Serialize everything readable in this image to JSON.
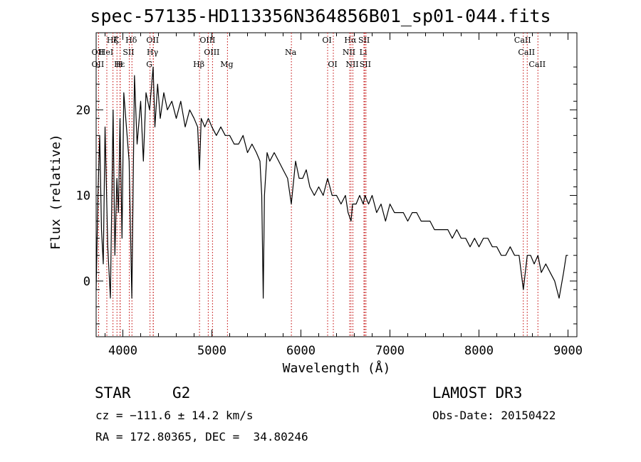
{
  "chart_data": {
    "type": "line",
    "title": "spec-57135-HD113356N364856B01_sp01-044.fits",
    "xlabel": "Wavelength (Å)",
    "ylabel": "Flux (relative)",
    "xlim": [
      3700,
      9100
    ],
    "ylim": [
      -6.5,
      29
    ],
    "xticks": [
      4000,
      5000,
      6000,
      7000,
      8000,
      9000
    ],
    "yticks": [
      0,
      10,
      20
    ],
    "series": [
      {
        "name": "flux",
        "x": [
          3700,
          3720,
          3740,
          3760,
          3780,
          3800,
          3830,
          3860,
          3890,
          3910,
          3933,
          3950,
          3968,
          3990,
          4010,
          4040,
          4070,
          4101,
          4130,
          4160,
          4200,
          4230,
          4260,
          4300,
          4340,
          4360,
          4390,
          4420,
          4460,
          4500,
          4550,
          4600,
          4650,
          4700,
          4750,
          4800,
          4840,
          4861,
          4880,
          4920,
          4960,
          5000,
          5050,
          5100,
          5150,
          5200,
          5250,
          5300,
          5350,
          5400,
          5450,
          5500,
          5540,
          5560,
          5577,
          5590,
          5620,
          5650,
          5700,
          5750,
          5800,
          5850,
          5892,
          5940,
          5980,
          6020,
          6060,
          6100,
          6150,
          6200,
          6250,
          6300,
          6350,
          6400,
          6450,
          6500,
          6530,
          6563,
          6580,
          6620,
          6660,
          6700,
          6720,
          6760,
          6800,
          6850,
          6900,
          6950,
          7000,
          7050,
          7100,
          7150,
          7200,
          7250,
          7300,
          7350,
          7400,
          7450,
          7500,
          7550,
          7600,
          7650,
          7700,
          7750,
          7800,
          7850,
          7900,
          7950,
          8000,
          8050,
          8100,
          8150,
          8200,
          8250,
          8300,
          8350,
          8400,
          8450,
          8498,
          8542,
          8580,
          8620,
          8662,
          8700,
          8750,
          8800,
          8850,
          8900,
          8950,
          8980,
          9000
        ],
        "values": [
          -1,
          10,
          17,
          6,
          2,
          18,
          4,
          -2,
          20,
          3,
          12,
          8,
          19,
          5,
          22,
          18,
          14,
          -2,
          24,
          16,
          21,
          14,
          22,
          20,
          25,
          18,
          23,
          19,
          22,
          20,
          21,
          19,
          21,
          18,
          20,
          19,
          18,
          13,
          19,
          18,
          19,
          18,
          17,
          18,
          17,
          17,
          16,
          16,
          17,
          15,
          16,
          15,
          14,
          10,
          -2,
          10,
          15,
          14,
          15,
          14,
          13,
          12,
          9,
          14,
          12,
          12,
          13,
          11,
          10,
          11,
          10,
          12,
          10,
          10,
          9,
          10,
          8,
          7,
          9,
          9,
          10,
          9,
          10,
          9,
          10,
          8,
          9,
          7,
          9,
          8,
          8,
          8,
          7,
          8,
          8,
          7,
          7,
          7,
          6,
          6,
          6,
          6,
          5,
          6,
          5,
          5,
          4,
          5,
          4,
          5,
          5,
          4,
          4,
          3,
          3,
          4,
          3,
          3,
          -1,
          3,
          3,
          2,
          3,
          1,
          2,
          1,
          0,
          -2,
          1,
          3,
          3
        ]
      }
    ],
    "lines": [
      {
        "label": "Hζ",
        "x": 3889,
        "row": 1
      },
      {
        "label": "OII",
        "x": 3727,
        "row": 2
      },
      {
        "label": "OII",
        "x": 3727,
        "row": 3
      },
      {
        "label": "Hε",
        "x": 3970,
        "row": 3
      },
      {
        "label": "HeI",
        "x": 3820,
        "row": 2
      },
      {
        "label": "K",
        "x": 3934,
        "row": 1
      },
      {
        "label": "H",
        "x": 3968,
        "row": 3
      },
      {
        "label": "SII",
        "x": 4072,
        "row": 2
      },
      {
        "label": "Hδ",
        "x": 4102,
        "row": 1
      },
      {
        "label": "OII",
        "x": 4342,
        "row": 1
      },
      {
        "label": "Hγ",
        "x": 4341,
        "row": 2
      },
      {
        "label": "G",
        "x": 4305,
        "row": 3
      },
      {
        "label": "Hβ",
        "x": 4861,
        "row": 3
      },
      {
        "label": "OIII",
        "x": 4959,
        "row": 1
      },
      {
        "label": "OIII",
        "x": 5007,
        "row": 2
      },
      {
        "label": "Mg",
        "x": 5175,
        "row": 3
      },
      {
        "label": "Na",
        "x": 5893,
        "row": 2
      },
      {
        "label": "OI",
        "x": 6300,
        "row": 1
      },
      {
        "label": "OI",
        "x": 6364,
        "row": 3
      },
      {
        "label": "Hα",
        "x": 6563,
        "row": 1
      },
      {
        "label": "NII",
        "x": 6548,
        "row": 2
      },
      {
        "label": "NII",
        "x": 6584,
        "row": 3
      },
      {
        "label": "SII",
        "x": 6717,
        "row": 1
      },
      {
        "label": "Li",
        "x": 6708,
        "row": 2
      },
      {
        "label": "SII",
        "x": 6731,
        "row": 3
      },
      {
        "label": "CaII",
        "x": 8498,
        "row": 1
      },
      {
        "label": "CaII",
        "x": 8542,
        "row": 2
      },
      {
        "label": "CaII",
        "x": 8662,
        "row": 3
      }
    ],
    "line_color": "#c00000"
  },
  "info": {
    "object_class": "STAR",
    "subclass": "G2",
    "survey": "LAMOST DR3",
    "velocity": "cz = −111.6 ± 14.2 km/s",
    "obs_date": "Obs-Date: 20150422",
    "coords": "RA = 172.80365, DEC =  34.80246"
  }
}
